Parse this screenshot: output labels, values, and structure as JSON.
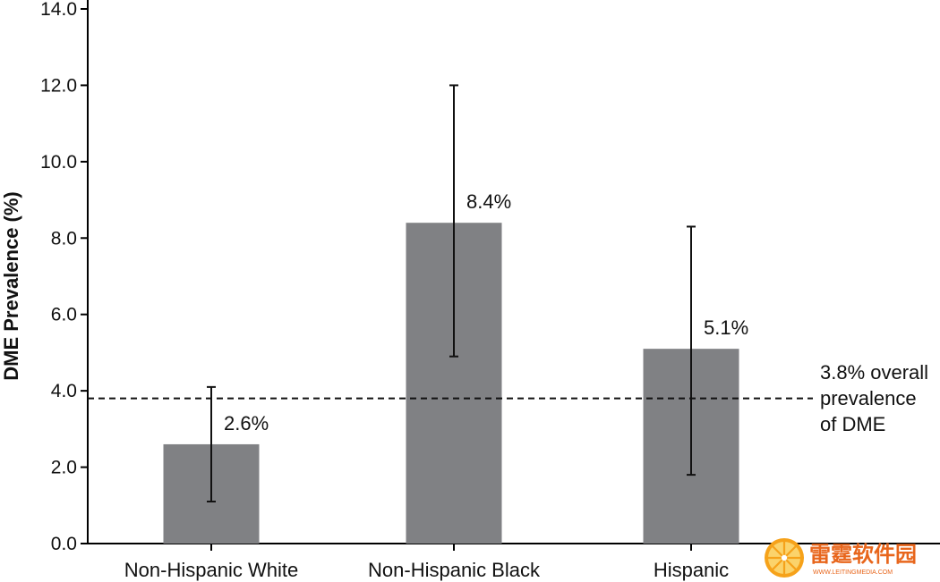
{
  "chart_data": {
    "type": "bar",
    "ylabel": "DME Prevalence (%)",
    "xlabel": "",
    "ylim": [
      0,
      14
    ],
    "yticks": [
      "0.0",
      "2.0",
      "4.0",
      "6.0",
      "8.0",
      "10.0",
      "12.0",
      "14.0"
    ],
    "grid": false,
    "categories": [
      "Non-Hispanic White",
      "Non-Hispanic Black",
      "Hispanic"
    ],
    "values": [
      2.6,
      8.4,
      5.1
    ],
    "value_labels": [
      "2.6%",
      "8.4%",
      "5.1%"
    ],
    "error_low": [
      1.1,
      4.9,
      1.8
    ],
    "error_high": [
      4.1,
      12.0,
      8.3
    ],
    "bar_color": "#808184",
    "reference_line": {
      "value": 3.8,
      "style": "dashed",
      "label_lines": [
        "3.8% overall",
        "prevalence",
        "of DME"
      ]
    }
  },
  "watermark": {
    "text": "雷霆软件园",
    "subtext": "WWW.LEITINGMEDIA.COM"
  }
}
